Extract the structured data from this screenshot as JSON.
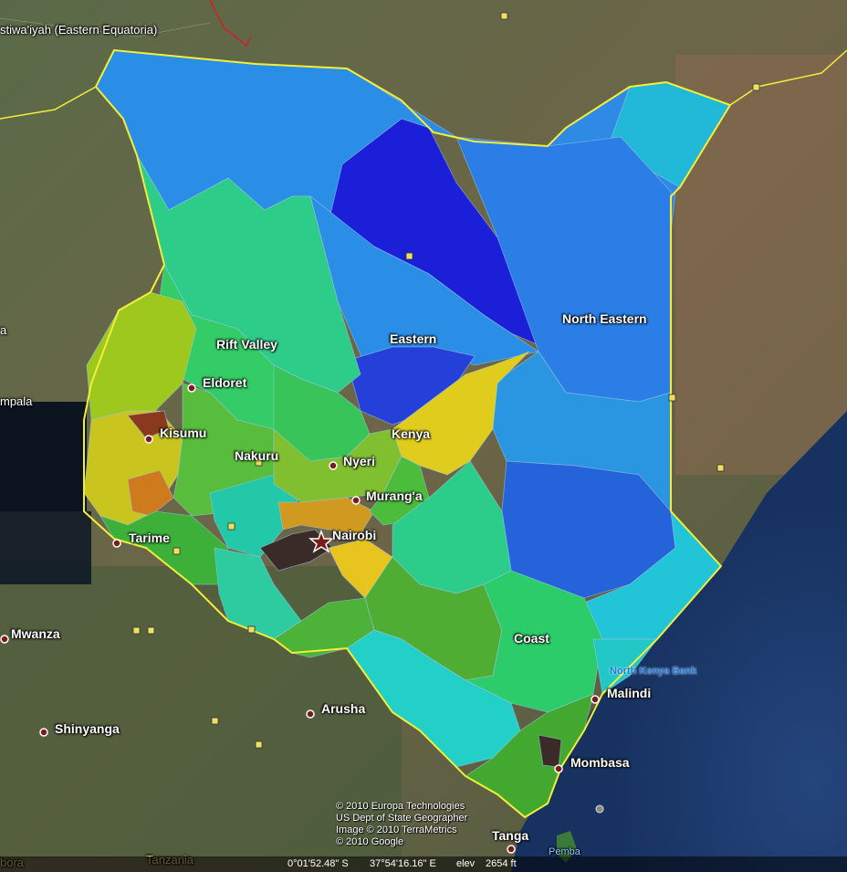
{
  "regions": {
    "rift_valley": "Rift Valley",
    "eastern": "Eastern",
    "north_eastern": "North Eastern",
    "central": "Kenya",
    "coast": "Coast"
  },
  "cities": {
    "eldoret": "Eldoret",
    "kisumu": "Kisumu",
    "nakuru": "Nakuru",
    "nyeri": "Nyeri",
    "murangа": "Murang'a",
    "nairobi": "Nairobi",
    "tarime": "Tarime",
    "mwanza": "Mwanza",
    "arusha": "Arusha",
    "shinyanga": "Shinyanga",
    "malindi": "Malindi",
    "mombasa": "Mombasa",
    "tanga": "Tanga",
    "kampala": "mpala",
    "juba_region": "stiwa'iyah (Eastern Equatoria)",
    "pemba": "Pemba",
    "tanzania": "Tanzania",
    "tz_bora": "bora",
    "left_a": "a"
  },
  "ocean_label": "North Kenya Bank",
  "credits": [
    "© 2010 Europa Technologies",
    "US Dept of State Geographer",
    "Image © 2010 TerraMetrics",
    "© 2010 Google"
  ],
  "status": {
    "lat": "0°01'52.48\" S",
    "lon": "37°54'16.16\" E",
    "elev_label": "elev",
    "elev": "2654 ft"
  },
  "colors": {
    "border": "#f2ee3a",
    "sea": "#1c3a6e"
  }
}
